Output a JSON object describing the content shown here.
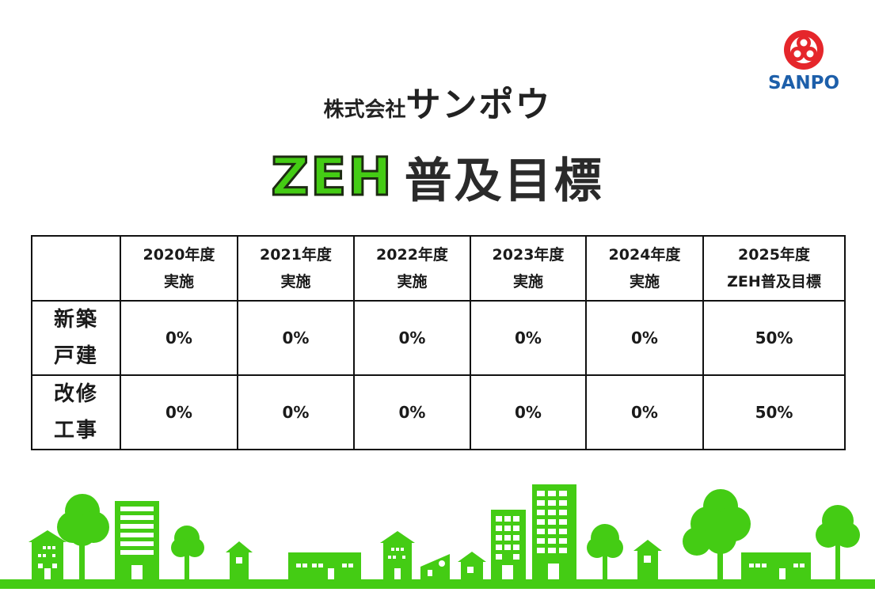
{
  "logo": {
    "text": "SANPO",
    "colors": {
      "mark": "#e5262b",
      "text": "#1d5faa"
    },
    "icon": "sanpo-logo-icon"
  },
  "company": {
    "prefix": "株式会社",
    "name": "サンポウ"
  },
  "title": {
    "highlight": "ZEH",
    "rest": "普及目標",
    "highlight_color": "#44cc14"
  },
  "table": {
    "corner": "",
    "headers": [
      {
        "line1": "2020年度",
        "line2": "実施"
      },
      {
        "line1": "2021年度",
        "line2": "実施"
      },
      {
        "line1": "2022年度",
        "line2": "実施"
      },
      {
        "line1": "2023年度",
        "line2": "実施"
      },
      {
        "line1": "2024年度",
        "line2": "実施"
      },
      {
        "line1": "2025年度",
        "line2": "ZEH普及目標"
      }
    ],
    "rows": [
      {
        "label1": "新築",
        "label2": "戸建",
        "values": [
          "0%",
          "0%",
          "0%",
          "0%",
          "0%",
          "50%"
        ]
      },
      {
        "label1": "改修",
        "label2": "工事",
        "values": [
          "0%",
          "0%",
          "0%",
          "0%",
          "0%",
          "50%"
        ]
      }
    ]
  },
  "illustration": {
    "name": "green-town-skyline",
    "color": "#44cc14"
  }
}
